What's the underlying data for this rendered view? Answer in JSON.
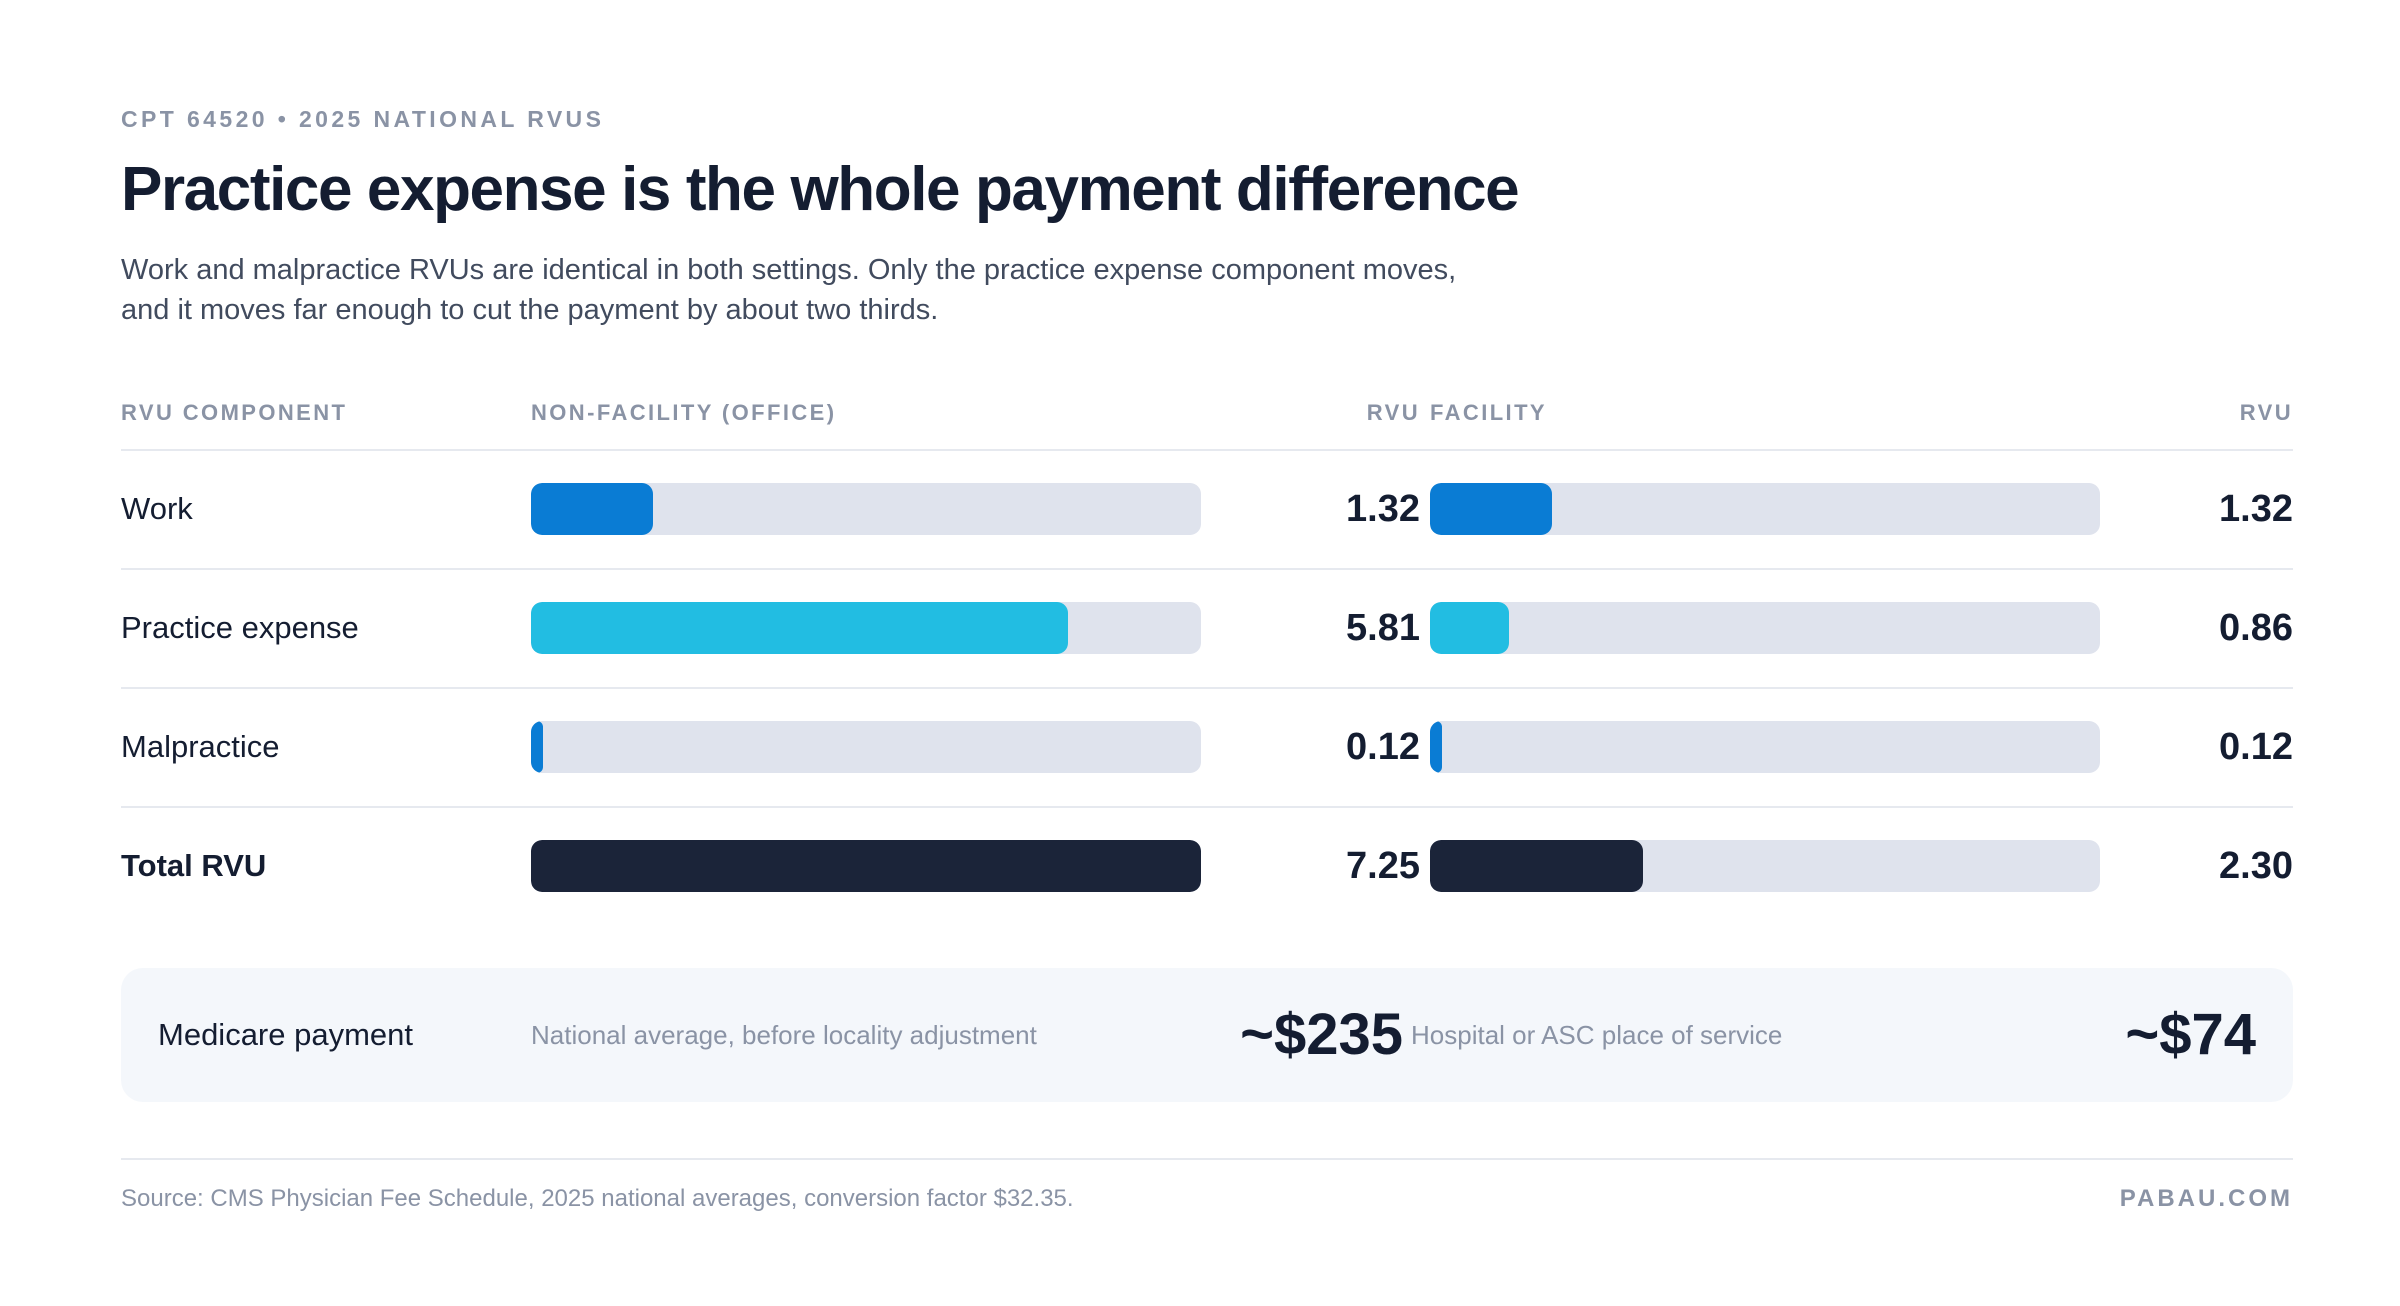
{
  "eyebrow": "CPT 64520 • 2025 NATIONAL RVUS",
  "title": "Practice expense is the whole payment difference",
  "subtitle_lines": [
    "Work and malpractice RVUs are identical in both settings. Only the practice expense component moves,",
    "and it moves far enough to cut the payment by about two thirds."
  ],
  "table_header": {
    "component": "RVU COMPONENT",
    "non_facility": "NON-FACILITY (OFFICE)",
    "rvu_nf": "RVU",
    "facility": "FACILITY",
    "rvu_fac": "RVU"
  },
  "payment": {
    "label": "Medicare payment",
    "non_facility_note": "National average, before locality adjustment",
    "non_facility_value": "~$235",
    "facility_note": "Hospital or ASC place of service",
    "facility_value": "~$74"
  },
  "footer": {
    "source": "Source: CMS Physician Fee Schedule, 2025 national averages, conversion factor $32.35.",
    "brand": "PABAU.COM"
  },
  "colors": {
    "work": "#0a7cd4",
    "practice_expense": "#22bde2",
    "malpractice": "#0a7cd4",
    "total": "#1b2439",
    "track": "#dfe3ed"
  },
  "chart_data": {
    "type": "bar",
    "orientation": "horizontal",
    "categories": [
      "Work",
      "Practice expense",
      "Malpractice",
      "Total RVU"
    ],
    "series": [
      {
        "name": "NON-FACILITY (OFFICE)",
        "values": [
          1.32,
          5.81,
          0.12,
          7.25
        ],
        "labels": [
          "1.32",
          "5.81",
          "0.12",
          "7.25"
        ]
      },
      {
        "name": "FACILITY",
        "values": [
          1.32,
          0.86,
          0.12,
          2.3
        ],
        "labels": [
          "1.32",
          "0.86",
          "0.12",
          "2.30"
        ]
      }
    ],
    "xlim": [
      0,
      7.25
    ],
    "grid": false
  }
}
